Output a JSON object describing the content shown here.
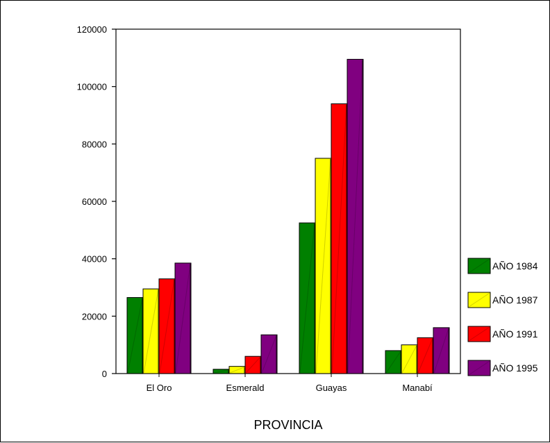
{
  "chart_data": {
    "type": "bar",
    "title": "",
    "xlabel": "PROVINCIA",
    "ylabel": "",
    "categories": [
      "El Oro",
      "Esmerald",
      "Guayas",
      "Manabí"
    ],
    "series": [
      {
        "name": "AÑO 1984",
        "color": "#008000",
        "values": [
          26500,
          1500,
          52500,
          8000
        ]
      },
      {
        "name": "AÑO 1987",
        "color": "#ffff00",
        "values": [
          29500,
          2500,
          75000,
          10000
        ]
      },
      {
        "name": "AÑO 1991",
        "color": "#ff0000",
        "values": [
          33000,
          6000,
          94000,
          12500
        ]
      },
      {
        "name": "AÑO 1995",
        "color": "#800080",
        "values": [
          38500,
          13500,
          109500,
          16000
        ]
      }
    ],
    "ylim": [
      0,
      120000
    ],
    "yticks": [
      "0",
      "20000",
      "40000",
      "60000",
      "80000",
      "100000",
      "120000"
    ],
    "grid": false,
    "legend_position": "right"
  }
}
